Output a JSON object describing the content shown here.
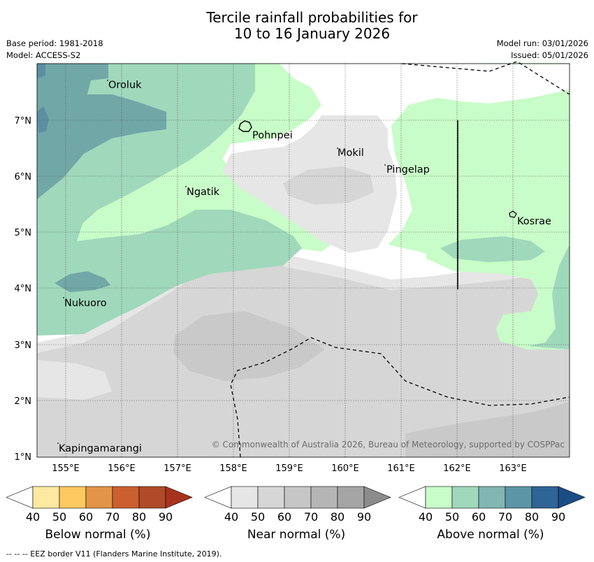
{
  "title": {
    "line1": "Tercile rainfall probabilities for",
    "line2": "10 to 16 January 2026"
  },
  "meta": {
    "base_period": "Base period: 1981-2018",
    "model": "Model: ACCESS-S2",
    "model_run": "Model run: 03/01/2026",
    "issued": "Issued: 05/01/2026"
  },
  "map": {
    "lon_labels": [
      "155°E",
      "156°E",
      "157°E",
      "158°E",
      "159°E",
      "160°E",
      "161°E",
      "162°E",
      "163°E"
    ],
    "lat_labels": [
      "1°N",
      "2°N",
      "3°N",
      "4°N",
      "5°N",
      "6°N",
      "7°N"
    ],
    "places": [
      {
        "name": "Oroluk"
      },
      {
        "name": "Pohnpei"
      },
      {
        "name": "Mokil"
      },
      {
        "name": "Pingelap"
      },
      {
        "name": "Ngatik"
      },
      {
        "name": "Kosrae"
      },
      {
        "name": "Nukuoro"
      },
      {
        "name": "Kapingamarangi"
      }
    ],
    "copyright": "© Commonwealth of Australia 2026, Bureau of Meteorology, supported by COSPPac"
  },
  "colorbars": [
    {
      "title": "Below normal (%)",
      "ticks": [
        "40",
        "50",
        "60",
        "70",
        "80",
        "90"
      ],
      "colors": [
        "#ffffff",
        "#fde9a0",
        "#fdc860",
        "#e39448",
        "#cc5f30",
        "#b04a28",
        "#a8331d"
      ]
    },
    {
      "title": "Near normal (%)",
      "ticks": [
        "40",
        "50",
        "60",
        "70",
        "80",
        "90"
      ],
      "colors": [
        "#ffffff",
        "#e6e6e6",
        "#d6d6d6",
        "#c6c6c6",
        "#b5b5b5",
        "#a5a5a5",
        "#8c8c8c"
      ]
    },
    {
      "title": "Above normal (%)",
      "ticks": [
        "40",
        "50",
        "60",
        "70",
        "80",
        "90"
      ],
      "colors": [
        "#ffffff",
        "#c8fcc8",
        "#a0d8bc",
        "#82b6b2",
        "#5b95a6",
        "#2f6496",
        "#1a4d84"
      ]
    }
  ],
  "footer": "--  --  -- EEZ border V11 (Flanders Marine Institute, 2019)."
}
